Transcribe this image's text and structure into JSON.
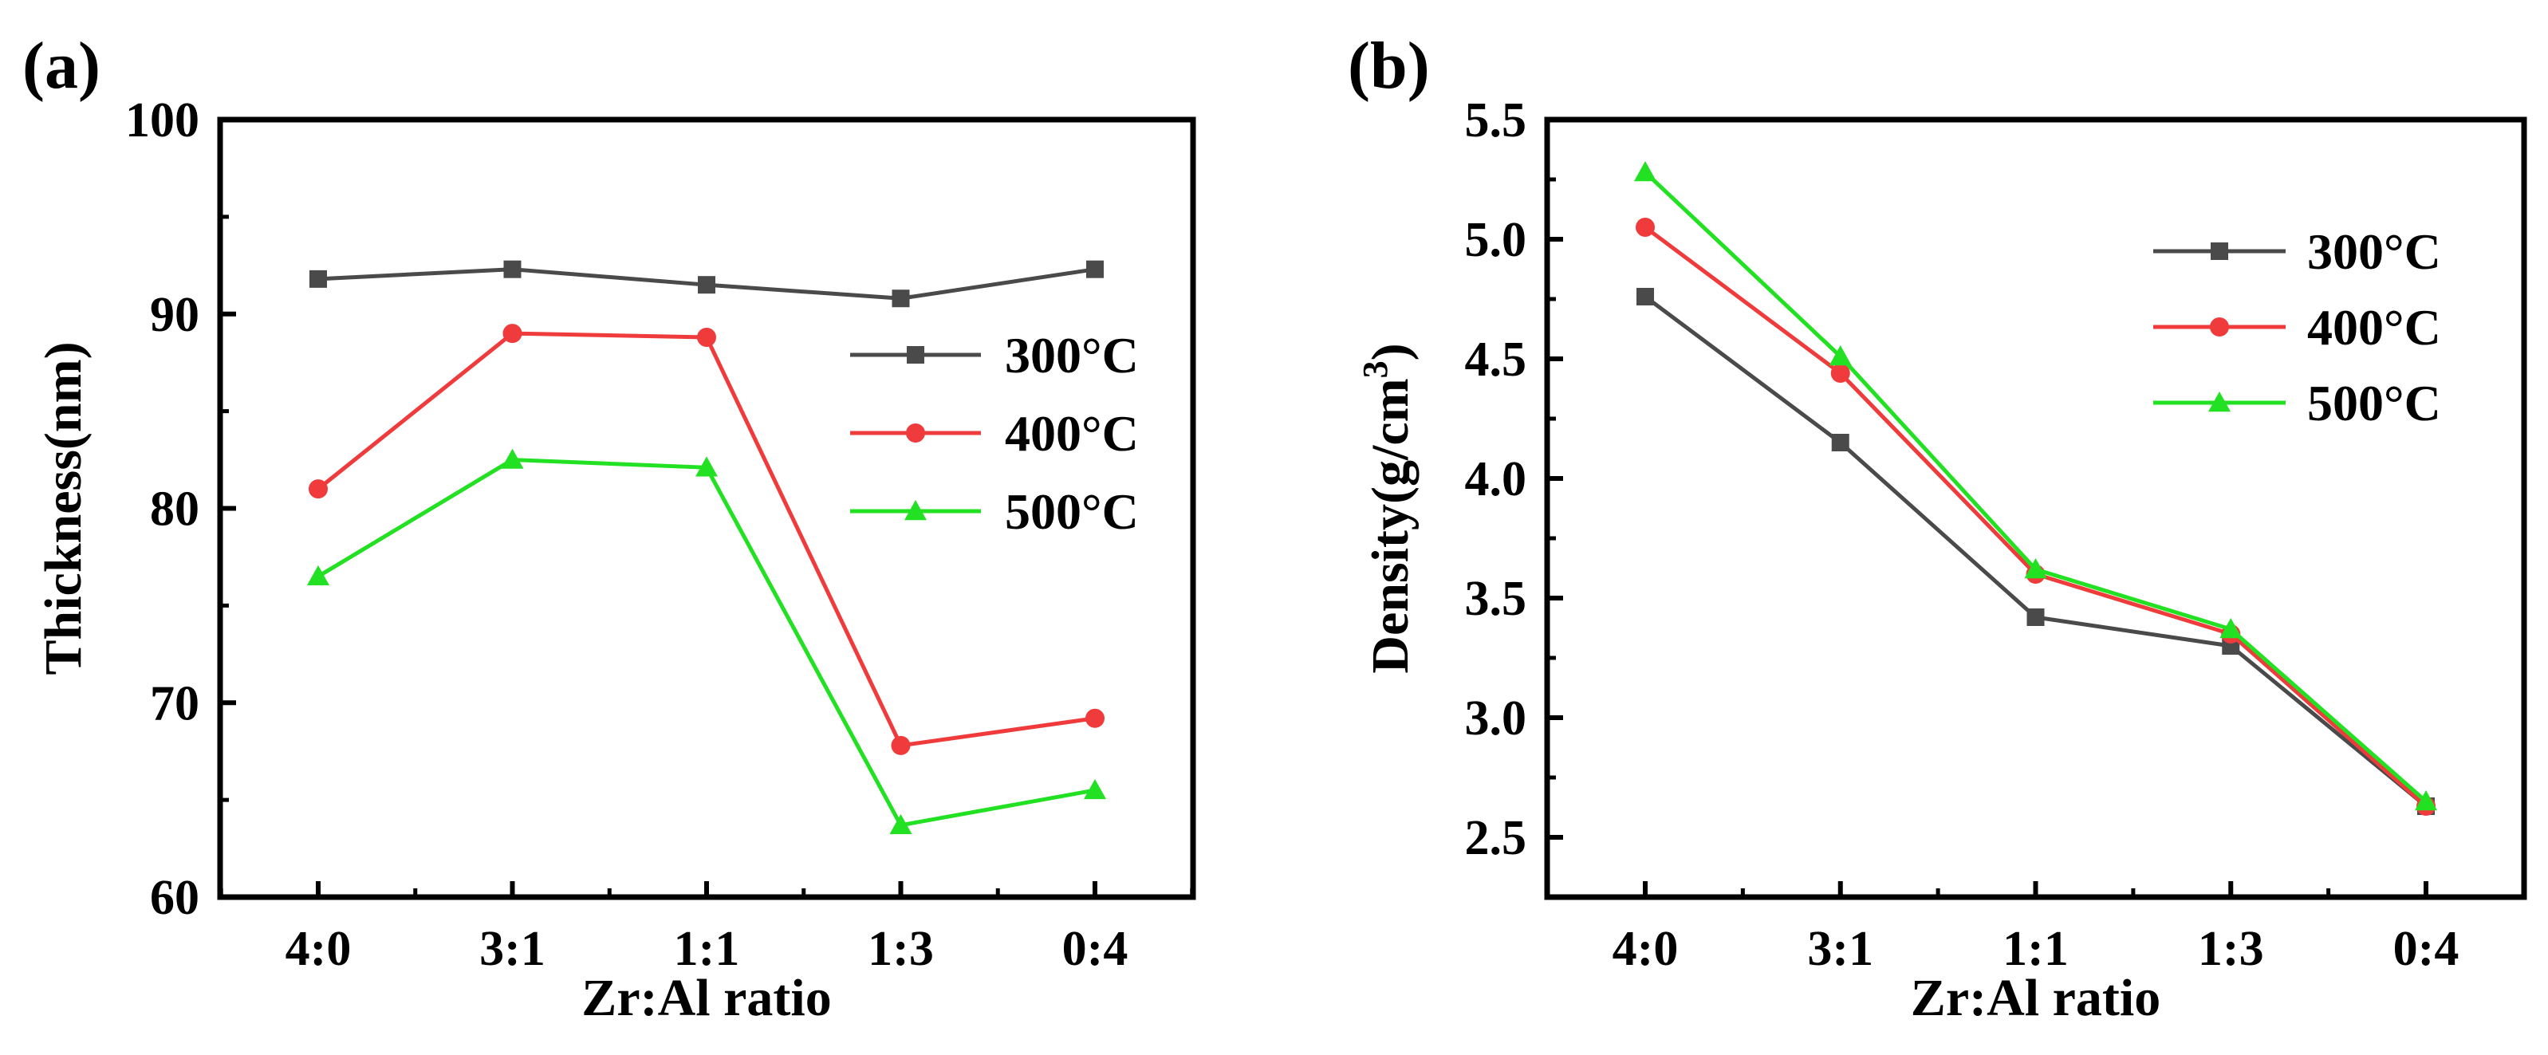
{
  "chart_data": [
    {
      "type": "line",
      "panel_label": "(a)",
      "title": "",
      "xlabel": "Zr:Al ratio",
      "ylabel": "Thickness(nm)",
      "ylabel_sup": "",
      "ylabel_end": "",
      "categories": [
        "4:0",
        "3:1",
        "1:1",
        "1:3",
        "0:4"
      ],
      "ylim": [
        60,
        100
      ],
      "yticks": [
        60,
        70,
        80,
        90,
        100
      ],
      "ytick_labels": [
        "60",
        "70",
        "80",
        "90",
        "100"
      ],
      "grid": false,
      "legend_position": "center-right",
      "series": [
        {
          "name": "300°C",
          "color": "#4a4a4a",
          "marker": "square",
          "values": [
            91.8,
            92.3,
            91.5,
            90.8,
            92.3
          ]
        },
        {
          "name": "400°C",
          "color": "#ef3b3b",
          "marker": "circle",
          "values": [
            81.0,
            89.0,
            88.8,
            67.8,
            69.2
          ]
        },
        {
          "name": "500°C",
          "color": "#22e022",
          "marker": "triangle",
          "values": [
            76.5,
            82.5,
            82.1,
            63.7,
            65.5
          ]
        }
      ]
    },
    {
      "type": "line",
      "panel_label": "(b)",
      "title": "",
      "xlabel": "Zr:Al ratio",
      "ylabel": "Density(g/cm",
      "ylabel_sup": "3",
      "ylabel_end": ")",
      "categories": [
        "4:0",
        "3:1",
        "1:1",
        "1:3",
        "0:4"
      ],
      "ylim": [
        2.25,
        5.5
      ],
      "yticks": [
        2.5,
        3.0,
        3.5,
        4.0,
        4.5,
        5.0,
        5.5
      ],
      "ytick_labels": [
        "2.5",
        "3.0",
        "3.5",
        "4.0",
        "4.5",
        "5.0",
        "5.5"
      ],
      "grid": false,
      "legend_position": "top-right",
      "series": [
        {
          "name": "300°C",
          "color": "#4a4a4a",
          "marker": "square",
          "values": [
            4.76,
            4.15,
            3.42,
            3.3,
            2.63
          ]
        },
        {
          "name": "400°C",
          "color": "#ef3b3b",
          "marker": "circle",
          "values": [
            5.05,
            4.44,
            3.6,
            3.35,
            2.63
          ]
        },
        {
          "name": "500°C",
          "color": "#22e022",
          "marker": "triangle",
          "values": [
            5.28,
            4.51,
            3.62,
            3.37,
            2.65
          ]
        }
      ]
    }
  ]
}
